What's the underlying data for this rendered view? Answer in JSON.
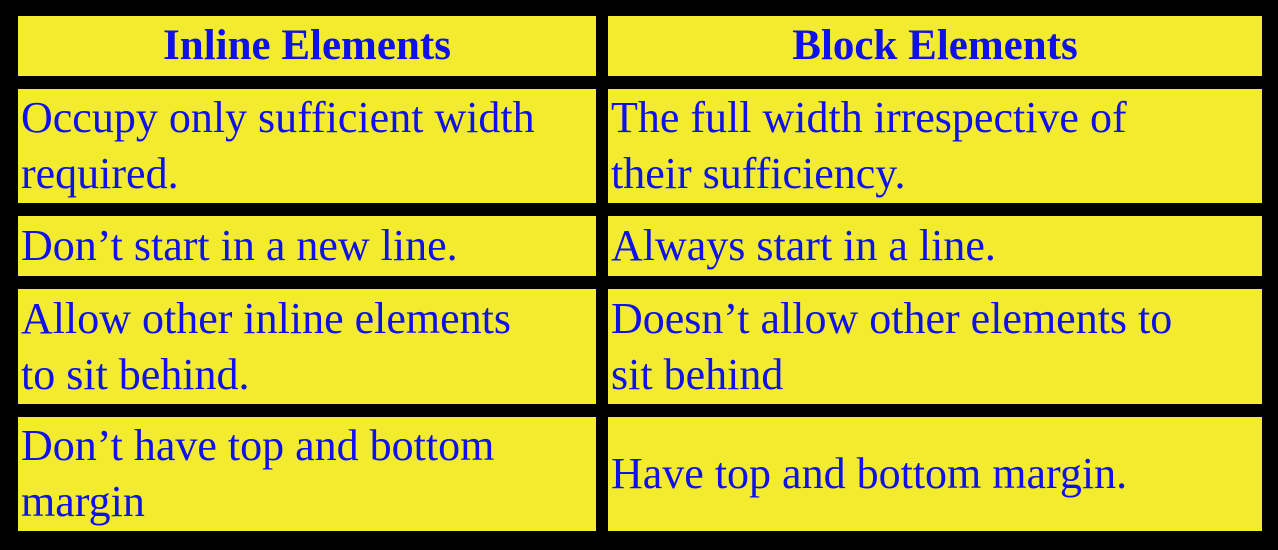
{
  "table": {
    "headers": [
      "Inline Elements",
      "Block Elements"
    ],
    "rows": [
      {
        "inline": [
          "Occupy only sufficient width",
          "required."
        ],
        "block": [
          "The full width irrespective of",
          "their sufficiency."
        ]
      },
      {
        "inline": [
          "Don’t start in a new line."
        ],
        "block": [
          "Always start in a line."
        ]
      },
      {
        "inline": [
          "Allow other inline elements",
          "to sit behind."
        ],
        "block": [
          "Doesn’t allow other elements to",
          "sit behind"
        ]
      },
      {
        "inline": [
          "Don’t have top and bottom",
          "margin"
        ],
        "block": [
          "Have top and bottom margin."
        ]
      }
    ]
  },
  "colors": {
    "background": "#000000",
    "cell_fill": "#f3ec2e",
    "text": "#1010e8"
  }
}
